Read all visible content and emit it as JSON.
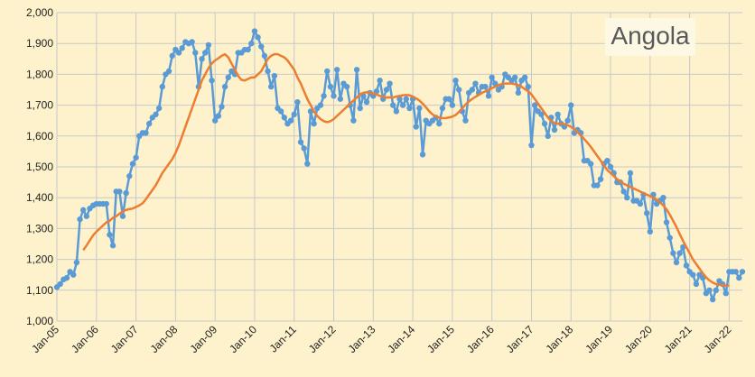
{
  "chart_data": {
    "type": "line",
    "title": "Angola",
    "ylim": [
      1000,
      2000
    ],
    "yticks": [
      "1,000",
      "1,100",
      "1,200",
      "1,300",
      "1,400",
      "1,500",
      "1,600",
      "1,700",
      "1,800",
      "1,900",
      "2,000"
    ],
    "xtick_labels": [
      "Jan-05",
      "Jan-06",
      "Jan-07",
      "Jan-08",
      "Jan-09",
      "Jan-10",
      "Jan-11",
      "Jan-12",
      "Jan-13",
      "Jan-14",
      "Jan-15",
      "Jan-16",
      "Jan-17",
      "Jan-18",
      "Jan-19",
      "Jan-20",
      "Jan-21",
      "Jan-22"
    ],
    "x_start": "Jan-05",
    "x_frequency": "monthly",
    "grid": true,
    "colors": {
      "monthly": "#5b9bd5",
      "average": "#ed7d31",
      "background": "#fdf2cc"
    },
    "series": [
      {
        "style": "line-with-markers",
        "values": [
          1110,
          1120,
          1135,
          1140,
          1160,
          1150,
          1190,
          1330,
          1360,
          1340,
          1365,
          1375,
          1380,
          1380,
          1380,
          1380,
          1280,
          1245,
          1420,
          1420,
          1340,
          1415,
          1470,
          1510,
          1530,
          1600,
          1610,
          1610,
          1640,
          1660,
          1670,
          1690,
          1760,
          1800,
          1810,
          1860,
          1880,
          1870,
          1885,
          1905,
          1900,
          1905,
          1870,
          1760,
          1850,
          1870,
          1895,
          1780,
          1650,
          1665,
          1695,
          1760,
          1790,
          1810,
          1800,
          1870,
          1870,
          1880,
          1880,
          1900,
          1940,
          1920,
          1890,
          1860,
          1810,
          1760,
          1795,
          1690,
          1680,
          1660,
          1640,
          1650,
          1670,
          1710,
          1580,
          1560,
          1510,
          1680,
          1640,
          1690,
          1700,
          1730,
          1810,
          1760,
          1730,
          1815,
          1720,
          1770,
          1760,
          1700,
          1650,
          1815,
          1690,
          1730,
          1710,
          1740,
          1730,
          1745,
          1780,
          1720,
          1750,
          1770,
          1700,
          1680,
          1720,
          1700,
          1720,
          1690,
          1720,
          1630,
          1690,
          1540,
          1650,
          1640,
          1650,
          1660,
          1640,
          1690,
          1720,
          1720,
          1700,
          1780,
          1750,
          1680,
          1650,
          1740,
          1750,
          1770,
          1740,
          1760,
          1760,
          1730,
          1790,
          1770,
          1750,
          1760,
          1800,
          1790,
          1780,
          1790,
          1740,
          1780,
          1790,
          1760,
          1570,
          1700,
          1680,
          1670,
          1640,
          1600,
          1660,
          1620,
          1670,
          1640,
          1630,
          1650,
          1700,
          1610,
          1620,
          1610,
          1520,
          1520,
          1510,
          1440,
          1440,
          1460,
          1510,
          1520,
          1500,
          1480,
          1450,
          1450,
          1420,
          1400,
          1480,
          1390,
          1390,
          1380,
          1410,
          1350,
          1290,
          1410,
          1380,
          1390,
          1400,
          1320,
          1270,
          1220,
          1190,
          1220,
          1240,
          1180,
          1160,
          1150,
          1120,
          1150,
          1140,
          1090,
          1100,
          1070,
          1100,
          1130,
          1120,
          1090,
          1160,
          1160,
          1160,
          1140,
          1160
        ]
      },
      {
        "style": "line",
        "start_index": 8,
        "values": [
          1230,
          1245,
          1262,
          1278,
          1290,
          1300,
          1310,
          1320,
          1325,
          1335,
          1340,
          1348,
          1356,
          1360,
          1363,
          1365,
          1370,
          1375,
          1382,
          1395,
          1410,
          1425,
          1440,
          1460,
          1480,
          1495,
          1510,
          1525,
          1545,
          1570,
          1600,
          1630,
          1660,
          1690,
          1720,
          1750,
          1780,
          1800,
          1820,
          1835,
          1845,
          1852,
          1860,
          1865,
          1855,
          1835,
          1815,
          1795,
          1782,
          1780,
          1785,
          1790,
          1790,
          1800,
          1810,
          1830,
          1850,
          1860,
          1865,
          1865,
          1860,
          1855,
          1845,
          1830,
          1815,
          1790,
          1770,
          1745,
          1720,
          1700,
          1680,
          1665,
          1655,
          1648,
          1645,
          1648,
          1655,
          1665,
          1675,
          1685,
          1695,
          1705,
          1715,
          1725,
          1735,
          1740,
          1742,
          1740,
          1738,
          1735,
          1730,
          1727,
          1725,
          1725,
          1725,
          1728,
          1730,
          1732,
          1733,
          1732,
          1728,
          1722,
          1715,
          1705,
          1693,
          1680,
          1670,
          1663,
          1660,
          1658,
          1658,
          1660,
          1663,
          1668,
          1678,
          1690,
          1702,
          1712,
          1720,
          1727,
          1733,
          1740,
          1745,
          1750,
          1755,
          1760,
          1765,
          1768,
          1770,
          1770,
          1770,
          1768,
          1765,
          1760,
          1752,
          1745,
          1735,
          1720,
          1705,
          1690,
          1675,
          1660,
          1648,
          1642,
          1640,
          1640,
          1638,
          1635,
          1630,
          1622,
          1612,
          1602,
          1590,
          1578,
          1565,
          1550,
          1535,
          1520,
          1505,
          1490,
          1480,
          1470,
          1460,
          1452,
          1445,
          1440,
          1435,
          1430,
          1425,
          1420,
          1415,
          1410,
          1405,
          1400,
          1393,
          1385,
          1375,
          1362,
          1345,
          1325,
          1305,
          1282,
          1260,
          1240,
          1220,
          1200,
          1185,
          1170,
          1155,
          1142,
          1132,
          1125,
          1120,
          1118,
          1116,
          1115,
          1115
        ]
      }
    ]
  }
}
